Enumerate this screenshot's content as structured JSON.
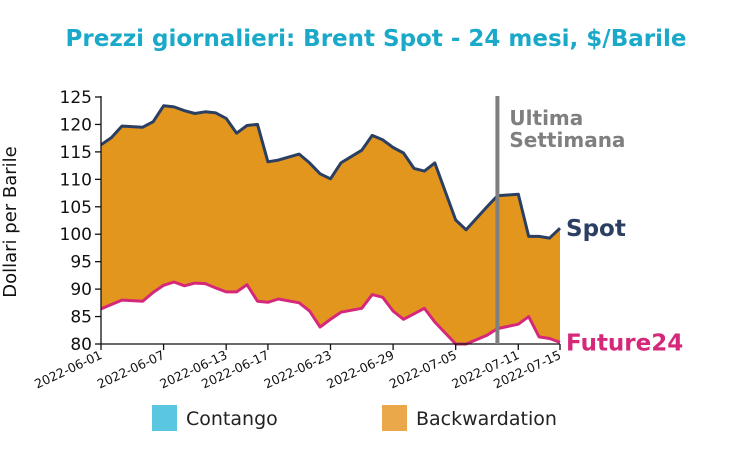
{
  "chart_data": {
    "type": "area",
    "title": "Prezzi giornalieri: Brent Spot - 24 mesi, $/Barile",
    "ylabel": "Dollari per Barile",
    "xlabel": "",
    "ylim": [
      80,
      125
    ],
    "yticks": [
      80,
      85,
      90,
      95,
      100,
      105,
      110,
      115,
      120,
      125
    ],
    "xticks": [
      "2022-06-01",
      "2022-06-07",
      "2022-06-13",
      "2022-06-17",
      "2022-06-23",
      "2022-06-29",
      "2022-07-05",
      "2022-07-11",
      "2022-07-15"
    ],
    "series": [
      {
        "name": "Spot",
        "color": "#2b3f63",
        "points": [
          [
            "2022-06-01",
            116.3
          ],
          [
            "2022-06-02",
            117.6
          ],
          [
            "2022-06-03",
            119.7
          ],
          [
            "2022-06-05",
            119.5
          ],
          [
            "2022-06-06",
            120.5
          ],
          [
            "2022-06-07",
            123.4
          ],
          [
            "2022-06-08",
            123.2
          ],
          [
            "2022-06-09",
            122.5
          ],
          [
            "2022-06-10",
            122.0
          ],
          [
            "2022-06-11",
            122.3
          ],
          [
            "2022-06-12",
            122.1
          ],
          [
            "2022-06-13",
            121.1
          ],
          [
            "2022-06-14",
            118.4
          ],
          [
            "2022-06-15",
            119.8
          ],
          [
            "2022-06-16",
            120.0
          ],
          [
            "2022-06-17",
            113.2
          ],
          [
            "2022-06-18",
            113.5
          ],
          [
            "2022-06-20",
            114.6
          ],
          [
            "2022-06-21",
            113.0
          ],
          [
            "2022-06-22",
            111.0
          ],
          [
            "2022-06-23",
            110.1
          ],
          [
            "2022-06-24",
            113.0
          ],
          [
            "2022-06-26",
            115.3
          ],
          [
            "2022-06-27",
            118.0
          ],
          [
            "2022-06-28",
            117.2
          ],
          [
            "2022-06-29",
            115.8
          ],
          [
            "2022-06-30",
            114.8
          ],
          [
            "2022-07-01",
            112.0
          ],
          [
            "2022-07-02",
            111.5
          ],
          [
            "2022-07-03",
            113.0
          ],
          [
            "2022-07-05",
            102.6
          ],
          [
            "2022-07-06",
            100.8
          ],
          [
            "2022-07-08",
            105.0
          ],
          [
            "2022-07-09",
            107.0
          ],
          [
            "2022-07-11",
            107.3
          ],
          [
            "2022-07-12",
            99.6
          ],
          [
            "2022-07-13",
            99.6
          ],
          [
            "2022-07-14",
            99.3
          ],
          [
            "2022-07-15",
            101.1
          ]
        ]
      },
      {
        "name": "Future24",
        "color": "#d6287a",
        "points": [
          [
            "2022-06-01",
            86.4
          ],
          [
            "2022-06-02",
            87.2
          ],
          [
            "2022-06-03",
            88.0
          ],
          [
            "2022-06-05",
            87.8
          ],
          [
            "2022-06-06",
            89.4
          ],
          [
            "2022-06-07",
            90.7
          ],
          [
            "2022-06-08",
            91.3
          ],
          [
            "2022-06-09",
            90.6
          ],
          [
            "2022-06-10",
            91.1
          ],
          [
            "2022-06-11",
            91.0
          ],
          [
            "2022-06-12",
            90.2
          ],
          [
            "2022-06-13",
            89.5
          ],
          [
            "2022-06-14",
            89.5
          ],
          [
            "2022-06-15",
            90.8
          ],
          [
            "2022-06-16",
            87.8
          ],
          [
            "2022-06-17",
            87.6
          ],
          [
            "2022-06-18",
            88.2
          ],
          [
            "2022-06-20",
            87.5
          ],
          [
            "2022-06-21",
            86.0
          ],
          [
            "2022-06-22",
            83.1
          ],
          [
            "2022-06-23",
            84.5
          ],
          [
            "2022-06-24",
            85.8
          ],
          [
            "2022-06-26",
            86.5
          ],
          [
            "2022-06-27",
            89.0
          ],
          [
            "2022-06-28",
            88.5
          ],
          [
            "2022-06-29",
            86.0
          ],
          [
            "2022-06-30",
            84.5
          ],
          [
            "2022-07-01",
            85.5
          ],
          [
            "2022-07-02",
            86.5
          ],
          [
            "2022-07-03",
            84.0
          ],
          [
            "2022-07-05",
            80.0
          ],
          [
            "2022-07-06",
            80.0
          ],
          [
            "2022-07-08",
            81.6
          ],
          [
            "2022-07-09",
            82.8
          ],
          [
            "2022-07-11",
            83.6
          ],
          [
            "2022-07-12",
            85.0
          ],
          [
            "2022-07-13",
            81.3
          ],
          [
            "2022-07-14",
            81.0
          ],
          [
            "2022-07-15",
            80.3
          ]
        ]
      }
    ],
    "fill_between": {
      "color": "#e3961e",
      "meaning": "Backwardation"
    },
    "vertical_marker": {
      "x": "2022-07-09",
      "label_lines": [
        "Ultima",
        "Settimana"
      ],
      "color": "#7f7f7f"
    },
    "legend": [
      {
        "label": "Contango",
        "color": "#5bc6df"
      },
      {
        "label": "Backwardation",
        "color": "#eba84a"
      }
    ],
    "legend_placement": "bottom",
    "title_color": "#1aa9c9",
    "grid": false
  }
}
